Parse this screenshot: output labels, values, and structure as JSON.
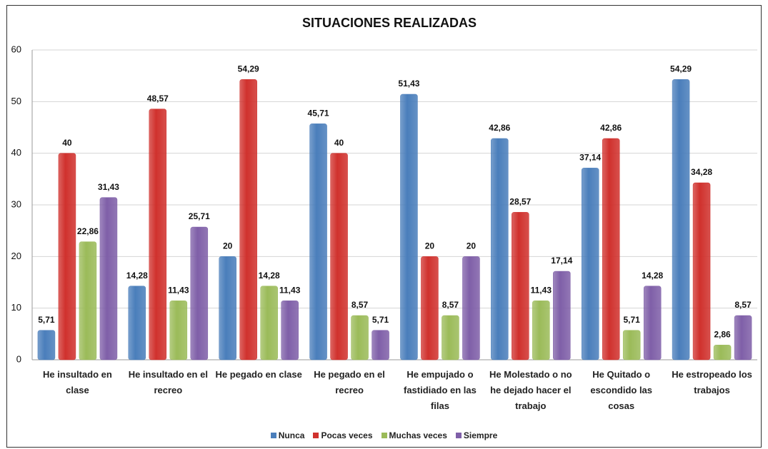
{
  "chart_data": {
    "type": "bar",
    "title": "SITUACIONES REALIZADAS",
    "categories": [
      "He insultado en clase",
      "He insultado en el recreo",
      "He pegado en clase",
      "He pegado en el recreo",
      "He empujado o fastidiado en las filas",
      "He Molestado o no he dejado hacer el trabajo",
      "He Quitado o escondido las cosas",
      "He estropeado los trabajos"
    ],
    "series": [
      {
        "name": "Nunca",
        "color": "#4a7ebb",
        "values": [
          5.71,
          14.28,
          20,
          45.71,
          51.43,
          42.86,
          37.14,
          54.29
        ],
        "value_labels": [
          "5,71",
          "14,28",
          "20",
          "45,71",
          "51,43",
          "42,86",
          "37,14",
          "54,29"
        ]
      },
      {
        "name": "Pocas veces",
        "color": "#d0312d",
        "values": [
          40,
          48.57,
          54.29,
          40,
          20,
          28.57,
          42.86,
          34.28
        ],
        "value_labels": [
          "40",
          "48,57",
          "54,29",
          "40",
          "20",
          "28,57",
          "42,86",
          "34,28"
        ]
      },
      {
        "name": "Muchas veces",
        "color": "#9bbb59",
        "values": [
          22.86,
          11.43,
          14.28,
          8.57,
          8.57,
          11.43,
          5.71,
          2.86
        ],
        "value_labels": [
          "22,86",
          "11,43",
          "14,28",
          "8,57",
          "8,57",
          "11,43",
          "5,71",
          "2,86"
        ]
      },
      {
        "name": "Siempre",
        "color": "#7f5fa8",
        "values": [
          31.43,
          25.71,
          11.43,
          5.71,
          20,
          17.14,
          14.28,
          8.57
        ],
        "value_labels": [
          "31,43",
          "25,71",
          "11,43",
          "5,71",
          "20",
          "17,14",
          "14,28",
          "8,57"
        ]
      }
    ],
    "ylim": [
      0,
      60
    ],
    "yticks": [
      0,
      10,
      20,
      30,
      40,
      50,
      60
    ],
    "grid": true,
    "legend": "bottom"
  }
}
